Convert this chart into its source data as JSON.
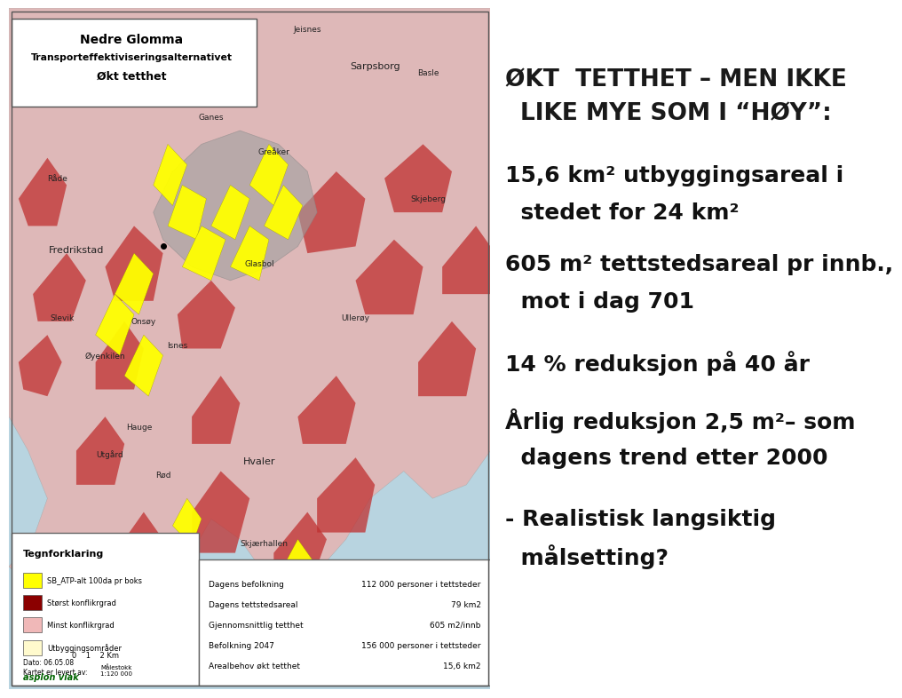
{
  "background_color": "#ffffff",
  "title_line1": "ØKT  TETTHET – MEN IKKE",
  "title_line2": "LIKE MYE SOM I “HØY”:",
  "bullet1_line1": "15,6 km² utbyggingsareal i",
  "bullet1_line2": "  stedet for 24 km²",
  "bullet2_line1": "605 m² tettstedsareal pr innb.,",
  "bullet2_line2": "  mot i dag 701",
  "bullet3": "14 % reduksjon på 40 år",
  "bullet4_line1": "Årlig reduksjon 2,5 m²– som",
  "bullet4_line2": "  dagens trend etter 2000",
  "bullet5_line1": "- Realistisk langsiktig",
  "bullet5_line2": "  målsetting?",
  "map_title_line1": "Nedre Glomma",
  "map_title_line2": "Transporteffektiviseringsalternativet",
  "map_title_line3": "Økt tetthet",
  "legend_title": "Tegnforklaring",
  "legend_items": [
    {
      "color": "#ffff00",
      "label": "SB_ATP-alt 100da pr boks"
    },
    {
      "color": "#8b0000",
      "label": "Størst konflikrgrad"
    },
    {
      "color": "#f0b8b8",
      "label": "Minst konflikrgrad"
    },
    {
      "color": "#fffacd",
      "label": "Utbyggingsområder"
    }
  ],
  "table_rows": [
    [
      "Dagens befolkning",
      "112 000 personer i tettsteder"
    ],
    [
      "Dagens tettstedsareal",
      "79 km2"
    ],
    [
      "Gjennomsnittlig tetthet",
      "605 m2/innb"
    ],
    [
      "Befolkning 2047",
      "156 000 personer i tettsteder"
    ],
    [
      "Arealbehov økt tetthet",
      "15,6 km2"
    ]
  ],
  "sea_color": "#b8d4e0",
  "land_light_color": "#e8c0c0",
  "land_red_color": "#c0404040",
  "urban_gray_color": "#b0b0b0",
  "yellow_color": "#ffff00",
  "map_border_color": "#888888",
  "title_fontsize": 19,
  "bullet_fontsize": 18
}
